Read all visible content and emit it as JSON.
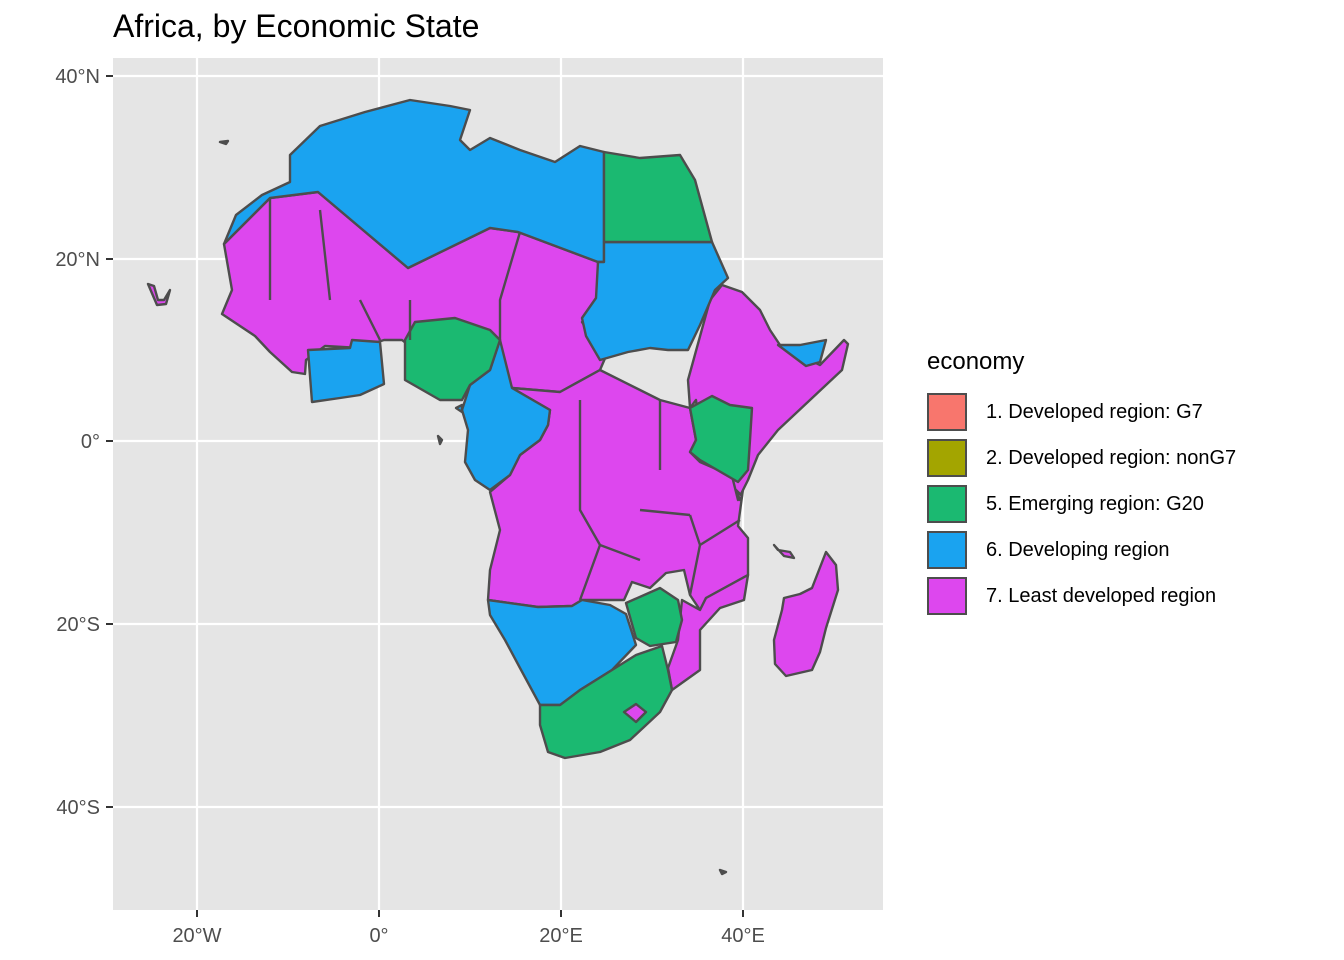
{
  "title": "Africa, by Economic State",
  "axes": {
    "x_ticks": [
      "20°W",
      "0°",
      "20°E",
      "40°E"
    ],
    "y_ticks": [
      "40°N",
      "20°N",
      "0°",
      "20°S",
      "40°S"
    ]
  },
  "legend": {
    "title": "economy",
    "items": [
      {
        "label": "1. Developed region: G7",
        "color": "#F8766D"
      },
      {
        "label": "2. Developed region: nonG7",
        "color": "#A3A500"
      },
      {
        "label": "5. Emerging region: G20",
        "color": "#1BB971"
      },
      {
        "label": "6. Developing region",
        "color": "#1AA3F0"
      },
      {
        "label": "7. Least developed region",
        "color": "#DD47EE"
      }
    ]
  },
  "colors": {
    "panel_bg": "#E5E5E5",
    "grid": "#FFFFFF",
    "border": "#4D4D4D",
    "emerging": "#1BB971",
    "developing": "#1AA3F0",
    "least_developed": "#DD47EE"
  }
}
